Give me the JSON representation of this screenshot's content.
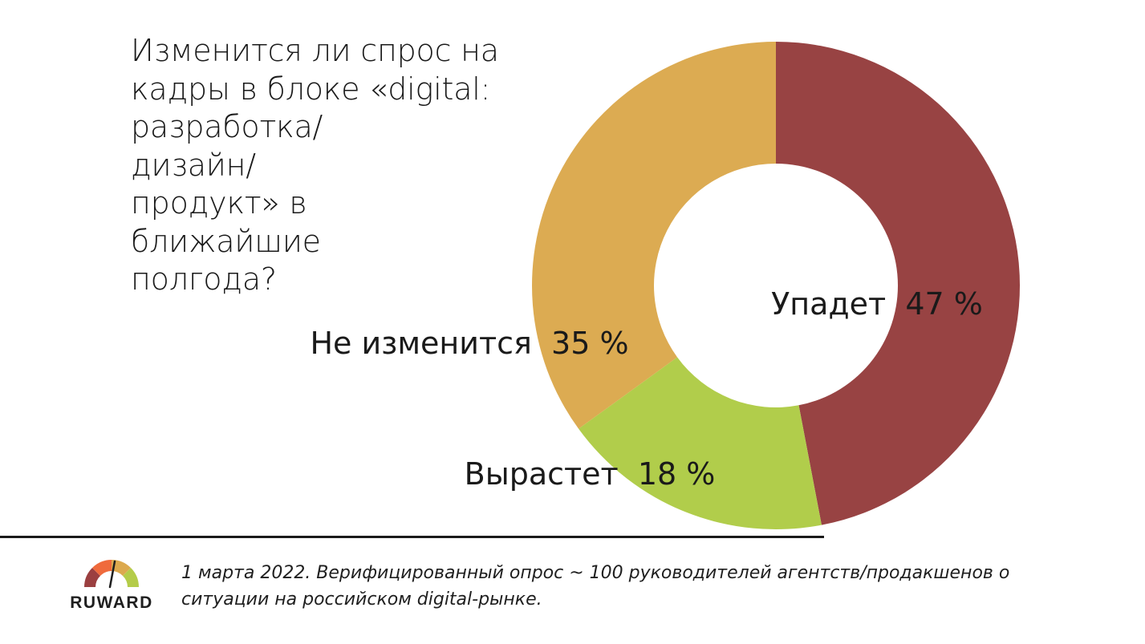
{
  "question": "Изменится ли спрос на\nкадры в блоке «digital:\nразработка/\nдизайн/\nпродукт» в ближайшие\nполгода?",
  "footnote": "1 марта 2022. Верифицированный опрос ~ 100 руководителей агентств/продакшенов о ситуации на российском digital-рынке.",
  "logo": {
    "text": "RUWARD",
    "icon": "gauge-icon",
    "colors": [
      "#9b3f40",
      "#ef6a3c",
      "#dca94e",
      "#b4cc49"
    ]
  },
  "chart_data": {
    "type": "pie",
    "style": "donut",
    "title": "Изменится ли спрос на кадры в блоке «digital: разработка/ дизайн/ продукт» в ближайшие полгода?",
    "slices": [
      {
        "label": "Упадет",
        "value": 47,
        "display": "47 %",
        "color": "#984343"
      },
      {
        "label": "Вырастет",
        "value": 18,
        "display": "18 %",
        "color": "#b1cd4b"
      },
      {
        "label": "Не изменится",
        "value": 35,
        "display": "35 %",
        "color": "#dcab52"
      }
    ],
    "start": "top",
    "direction": "clockwise"
  }
}
